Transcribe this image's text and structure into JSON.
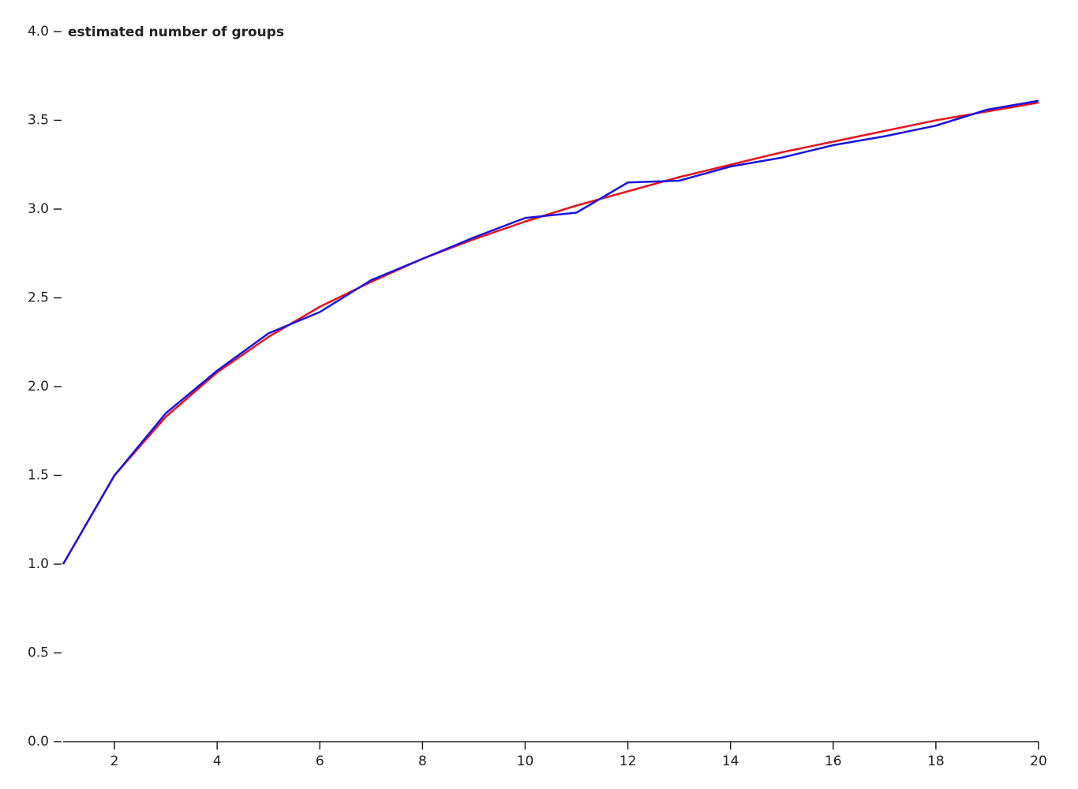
{
  "chart_data": {
    "type": "line",
    "y_label": "estimated number of groups",
    "x": [
      1,
      2,
      3,
      4,
      5,
      6,
      7,
      8,
      9,
      10,
      11,
      12,
      13,
      14,
      15,
      16,
      17,
      18,
      19,
      20
    ],
    "series": [
      {
        "color": "#e8141e",
        "values": [
          1,
          1.5,
          1.83,
          2.08,
          2.28,
          2.45,
          2.59,
          2.72,
          2.83,
          2.93,
          3.02,
          3.1,
          3.18,
          3.25,
          3.32,
          3.38,
          3.44,
          3.5,
          3.55,
          3.6
        ]
      },
      {
        "color": "#1a14e0",
        "values": [
          1,
          1.5,
          1.85,
          2.09,
          2.3,
          2.42,
          2.6,
          2.72,
          2.84,
          2.95,
          2.98,
          3.15,
          3.16,
          3.24,
          3.29,
          3.36,
          3.41,
          3.47,
          3.56,
          3.61
        ]
      }
    ],
    "xlim": [
      1,
      20
    ],
    "xticks": [
      2,
      4,
      6,
      8,
      10,
      12,
      14,
      16,
      18,
      20
    ],
    "ylim": [
      0,
      4
    ],
    "yticks": [
      {
        "value": 0,
        "label": "0.0"
      },
      0.5,
      {
        "value": 1,
        "label": "1.0"
      },
      1.5,
      {
        "value": 2,
        "label": "2.0"
      },
      2.5,
      {
        "value": 3,
        "label": "3.0"
      },
      3.5,
      {
        "value": 4,
        "label": "4.0"
      }
    ]
  }
}
